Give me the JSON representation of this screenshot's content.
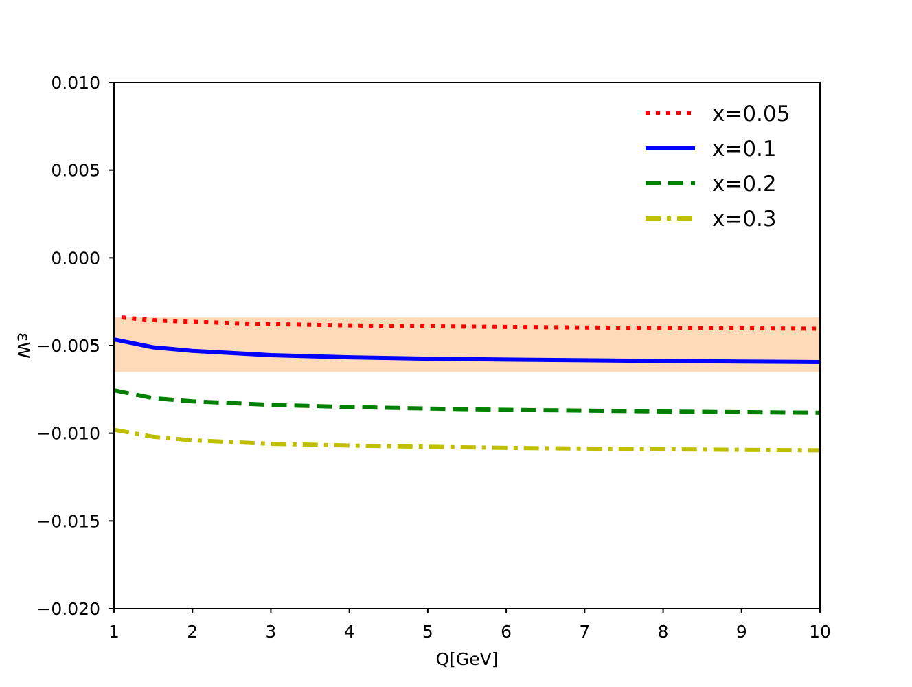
{
  "chart_data": {
    "type": "line",
    "xlabel": "Q[GeV]",
    "ylabel": "εW",
    "xlim": [
      1,
      10
    ],
    "ylim": [
      -0.02,
      0.01
    ],
    "x_ticks": [
      1,
      2,
      3,
      4,
      5,
      6,
      7,
      8,
      9,
      10
    ],
    "x_tick_labels": [
      "1",
      "2",
      "3",
      "4",
      "5",
      "6",
      "7",
      "8",
      "9",
      "10"
    ],
    "y_ticks": [
      0.01,
      0.005,
      0.0,
      -0.005,
      -0.01,
      -0.015,
      -0.02
    ],
    "y_tick_labels": [
      "0.010",
      "0.005",
      "0.000",
      "−0.005",
      "−0.010",
      "−0.015",
      "−0.020"
    ],
    "grid": false,
    "legend_position": "top-right",
    "band": {
      "y_min": -0.0065,
      "y_max": -0.0034,
      "color": "#ffdab9"
    },
    "series": [
      {
        "name": "x=0.05",
        "color": "#ff0000",
        "style": "dotted",
        "x": [
          1.1,
          1.5,
          2,
          3,
          4,
          5,
          6,
          7,
          8,
          9,
          10
        ],
        "y": [
          -0.0034,
          -0.00355,
          -0.00365,
          -0.00378,
          -0.00385,
          -0.0039,
          -0.00394,
          -0.00397,
          -0.004,
          -0.00402,
          -0.00404
        ]
      },
      {
        "name": "x=0.1",
        "color": "#0000ff",
        "style": "solid",
        "x": [
          1,
          1.5,
          2,
          3,
          4,
          5,
          6,
          7,
          8,
          9,
          10
        ],
        "y": [
          -0.00465,
          -0.0051,
          -0.0053,
          -0.00555,
          -0.00567,
          -0.00575,
          -0.0058,
          -0.00584,
          -0.00588,
          -0.00591,
          -0.00594
        ]
      },
      {
        "name": "x=0.2",
        "color": "#008000",
        "style": "dashed",
        "x": [
          1,
          1.5,
          2,
          3,
          4,
          5,
          6,
          7,
          8,
          9,
          10
        ],
        "y": [
          -0.00755,
          -0.008,
          -0.00818,
          -0.00838,
          -0.0085,
          -0.00859,
          -0.00866,
          -0.00871,
          -0.00876,
          -0.0088,
          -0.00883
        ]
      },
      {
        "name": "x=0.3",
        "color": "#bfbf00",
        "style": "dashdot",
        "x": [
          1,
          1.5,
          2,
          3,
          4,
          5,
          6,
          7,
          8,
          9,
          10
        ],
        "y": [
          -0.0098,
          -0.0102,
          -0.0104,
          -0.0106,
          -0.0107,
          -0.01077,
          -0.01083,
          -0.01087,
          -0.01091,
          -0.01094,
          -0.01097
        ]
      }
    ]
  }
}
